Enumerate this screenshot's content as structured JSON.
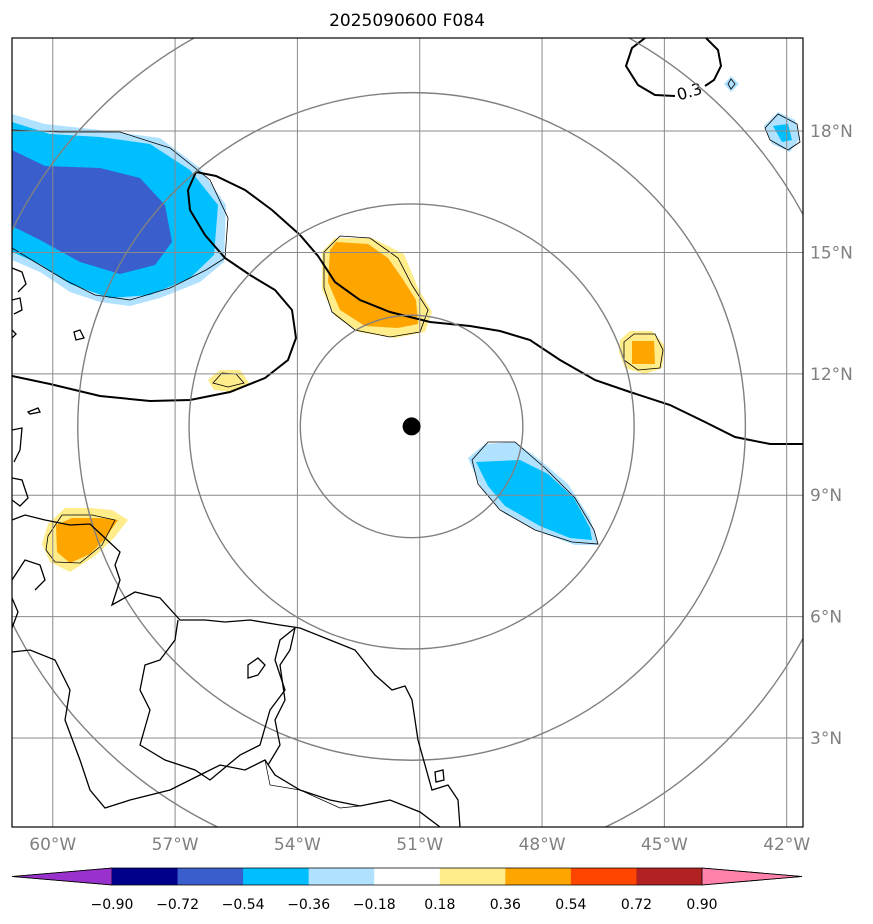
{
  "title": "2025090600 F084",
  "map": {
    "lon_range": [
      -61,
      -41.6
    ],
    "lat_range": [
      0.8,
      20.3
    ],
    "lon_ticks": [
      {
        "value": -60,
        "label": "60°W"
      },
      {
        "value": -57,
        "label": "57°W"
      },
      {
        "value": -54,
        "label": "54°W"
      },
      {
        "value": -51,
        "label": "51°W"
      },
      {
        "value": -48,
        "label": "48°W"
      },
      {
        "value": -45,
        "label": "45°W"
      },
      {
        "value": -42,
        "label": "42°W"
      }
    ],
    "lat_ticks": [
      {
        "value": 3,
        "label": "3°N"
      },
      {
        "value": 6,
        "label": "6°N"
      },
      {
        "value": 9,
        "label": "9°N"
      },
      {
        "value": 12,
        "label": "12°N"
      },
      {
        "value": 15,
        "label": "15°N"
      },
      {
        "value": 18,
        "label": "18°N"
      }
    ],
    "center": {
      "lon": -51.2,
      "lat": 10.7
    },
    "range_rings_deg": [
      2.75,
      5.5,
      8.25,
      11.0
    ],
    "contour_label": "0.3",
    "colors": {
      "grid": "#8a8a8a",
      "ring": "#808080",
      "coast": "#000000",
      "center": "#000000"
    }
  },
  "colorbar": {
    "levels": [
      "−0.90",
      "−0.72",
      "−0.54",
      "−0.36",
      "−0.18",
      "0.18",
      "0.36",
      "0.54",
      "0.72",
      "0.90"
    ],
    "colors": [
      "#9932cc",
      "#00008b",
      "#3a5fcd",
      "#00bfff",
      "#b0e2ff",
      "#ffffff",
      "#ffec8b",
      "#ffa500",
      "#ff4500",
      "#b22222",
      "#ff82ab"
    ],
    "extend": "both"
  }
}
